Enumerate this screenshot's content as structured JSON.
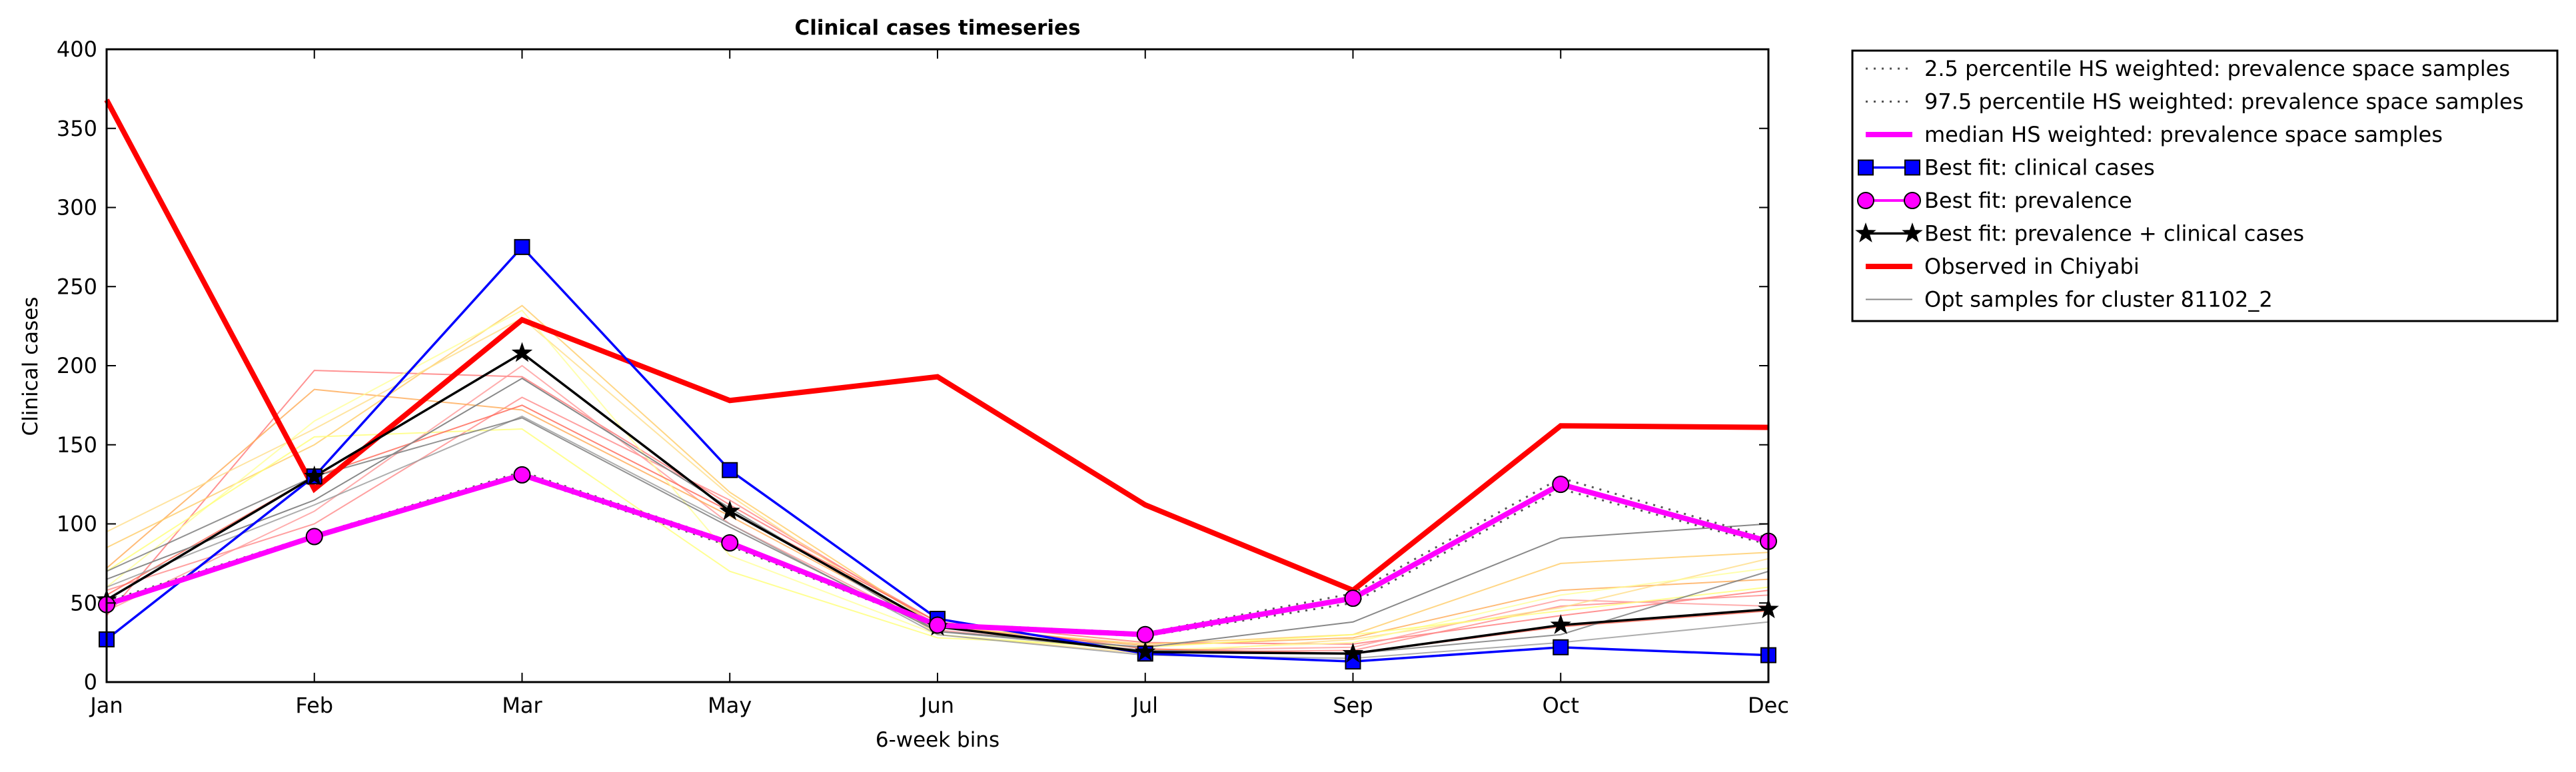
{
  "chart_data": {
    "type": "line",
    "title": "Clinical cases timeseries",
    "xlabel": "6-week bins",
    "ylabel": "Clinical cases",
    "categories": [
      "Jan",
      "Feb",
      "Mar",
      "May",
      "Jun",
      "Jul",
      "Sep",
      "Oct",
      "Dec"
    ],
    "yticks": [
      "0",
      "50",
      "100",
      "150",
      "200",
      "250",
      "300",
      "350",
      "400"
    ],
    "ylim": [
      0,
      400
    ],
    "grid": false,
    "legend_position": "outside-right-top",
    "series": [
      {
        "name": "2.5 percentile HS weighted: prevalence space samples",
        "style": "dotted",
        "color": "#555555",
        "values": [
          48,
          91,
          130,
          86,
          35,
          29,
          50,
          122,
          87
        ]
      },
      {
        "name": "97.5 percentile HS weighted: prevalence space samples",
        "style": "dotted",
        "color": "#555555",
        "values": [
          51,
          93,
          133,
          89,
          37,
          31,
          56,
          129,
          91
        ]
      },
      {
        "name": "median HS weighted: prevalence space samples",
        "style": "solid",
        "color": "#ff00ff",
        "values": [
          49,
          92,
          131,
          88,
          36,
          30,
          53,
          125,
          89
        ]
      },
      {
        "name": "Best fit: clinical cases",
        "style": "solid",
        "marker": "square",
        "color": "#0000ff",
        "values": [
          27,
          130,
          275,
          134,
          40,
          18,
          13,
          22,
          17
        ]
      },
      {
        "name": "Best fit: prevalence",
        "style": "solid",
        "marker": "circle",
        "color": "#ff00ff",
        "values": [
          49,
          92,
          131,
          88,
          36,
          30,
          53,
          125,
          89
        ]
      },
      {
        "name": "Best fit: prevalence + clinical cases",
        "style": "solid",
        "marker": "star",
        "color": "#000000",
        "values": [
          52,
          130,
          208,
          108,
          35,
          19,
          18,
          36,
          46
        ]
      },
      {
        "name": "Observed in Chiyabi",
        "style": "solid",
        "color": "#ff0000",
        "values": [
          368,
          122,
          229,
          178,
          193,
          112,
          58,
          162,
          161
        ]
      },
      {
        "name": "Opt samples for cluster 81102_2",
        "style": "thin",
        "color": "#888888",
        "values": [
          65,
          115,
          192,
          110,
          32,
          22,
          38,
          91,
          100
        ]
      }
    ],
    "sample_lines": [
      {
        "color": "#ff7777",
        "values": [
          42,
          197,
          193,
          112,
          38,
          25,
          24,
          42,
          58
        ]
      },
      {
        "color": "#ff8888",
        "values": [
          58,
          100,
          180,
          115,
          36,
          19,
          20,
          48,
          55
        ]
      },
      {
        "color": "#ff9999",
        "values": [
          45,
          108,
          200,
          100,
          33,
          20,
          22,
          52,
          48
        ]
      },
      {
        "color": "#ffaa55",
        "values": [
          72,
          185,
          172,
          105,
          35,
          23,
          28,
          58,
          65
        ]
      },
      {
        "color": "#ffcc66",
        "values": [
          85,
          150,
          238,
          120,
          35,
          24,
          30,
          75,
          82
        ]
      },
      {
        "color": "#ffdd88",
        "values": [
          95,
          160,
          230,
          118,
          30,
          18,
          27,
          47,
          78
        ]
      },
      {
        "color": "#ffff99",
        "values": [
          60,
          165,
          235,
          80,
          30,
          20,
          25,
          55,
          72
        ]
      },
      {
        "color": "#ffff77",
        "values": [
          70,
          155,
          160,
          70,
          28,
          22,
          30,
          45,
          60
        ]
      },
      {
        "color": "#ff6655",
        "values": [
          55,
          130,
          175,
          108,
          38,
          21,
          18,
          35,
          45
        ]
      },
      {
        "color": "#999999",
        "values": [
          60,
          112,
          168,
          100,
          30,
          17,
          15,
          25,
          38
        ]
      },
      {
        "color": "#777777",
        "values": [
          70,
          130,
          167,
          98,
          32,
          20,
          18,
          30,
          70
        ]
      }
    ]
  }
}
